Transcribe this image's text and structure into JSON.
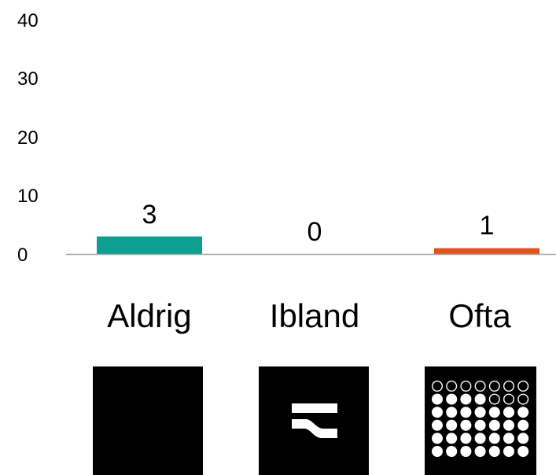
{
  "chart_data": {
    "type": "bar",
    "categories": [
      "Aldrig",
      "Ibland",
      "Ofta"
    ],
    "values": [
      3,
      0,
      1
    ],
    "data_labels": [
      "3",
      "0",
      "1"
    ],
    "yticks": [
      "0",
      "10",
      "20",
      "30",
      "40"
    ],
    "ylim": [
      0,
      40
    ],
    "grid": false,
    "legend": "none",
    "colors": [
      "#0e9e92",
      "#0e9e92",
      "#e0541c"
    ],
    "axis_color": "#a6a6a6",
    "title": "",
    "xlabel": "",
    "ylabel": ""
  },
  "category_icons": [
    {
      "category": "Aldrig",
      "icon": "solid-black-square-icon"
    },
    {
      "category": "Ibland",
      "icon": "wave-lines-square-icon"
    },
    {
      "category": "Ofta",
      "icon": "dot-grid-square-icon"
    }
  ]
}
